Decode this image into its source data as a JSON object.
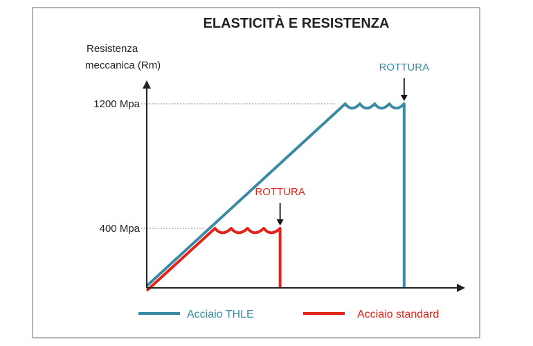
{
  "chart_data": {
    "type": "line",
    "title": "ELASTICITÀ E RESISTENZA",
    "ylabel_lines": [
      "Resistenza",
      "meccanica (Rm)"
    ],
    "xlabel": "",
    "y_ticks": [
      {
        "value": 1200,
        "label": "1200 Mpa"
      },
      {
        "value": 400,
        "label": "400 Mpa"
      }
    ],
    "ylim": [
      0,
      1500
    ],
    "xlim": [
      0,
      100
    ],
    "series": [
      {
        "name": "Acciaio THLE",
        "color": "#3a8aa3",
        "yield_x": 64,
        "yield_y": 1200,
        "break_x": 83,
        "start_y": 30,
        "wave_amplitude": 25,
        "wave_count": 4,
        "annotation": "ROTTURA",
        "annotation_color": "#3a8aa3"
      },
      {
        "name": "Acciaio standard",
        "color": "#e2231a",
        "yield_x": 22,
        "yield_y": 400,
        "break_x": 43,
        "start_y": 0,
        "wave_amplitude": 25,
        "wave_count": 4,
        "annotation": "ROTTURA",
        "annotation_color": "#e2231a"
      }
    ],
    "legend_position": "bottom",
    "grid": false
  },
  "colors": {
    "frame": "#9a9a9a",
    "axis": "#222222",
    "text": "#222222",
    "guide": "#888888"
  }
}
